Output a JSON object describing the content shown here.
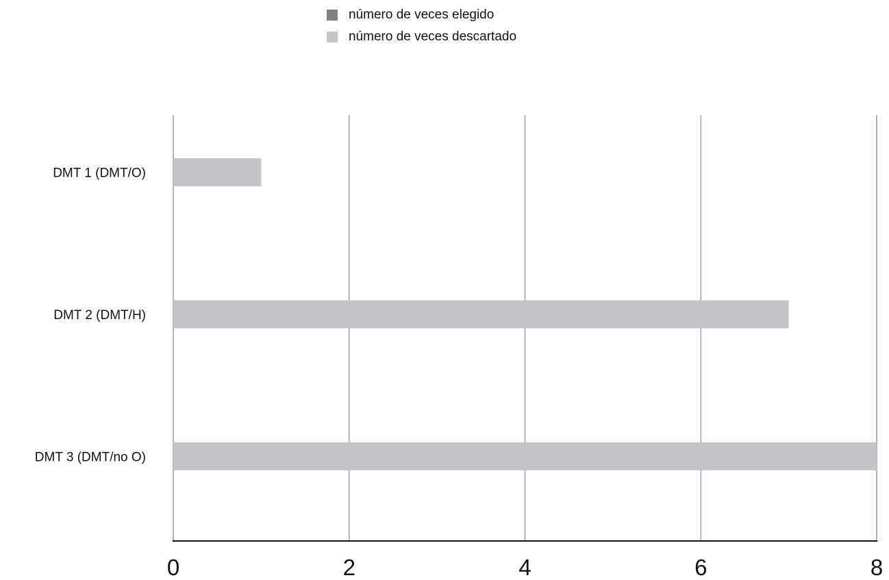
{
  "chart_data": {
    "type": "bar",
    "orientation": "horizontal",
    "categories": [
      "DMT 1 (DMT/O)",
      "DMT 2 (DMT/H)",
      "DMT 3 (DMT/no O)"
    ],
    "series": [
      {
        "name": "número de veces elegido",
        "values": [
          0,
          0,
          0
        ],
        "color": "#808184"
      },
      {
        "name": "número de veces descartado",
        "values": [
          1,
          7,
          8
        ],
        "color": "#c3c5c8"
      }
    ],
    "xlim": [
      0,
      8
    ],
    "xticks": [
      "0",
      "2",
      "4",
      "6",
      "8"
    ],
    "grid": true,
    "legend_position": "top"
  }
}
